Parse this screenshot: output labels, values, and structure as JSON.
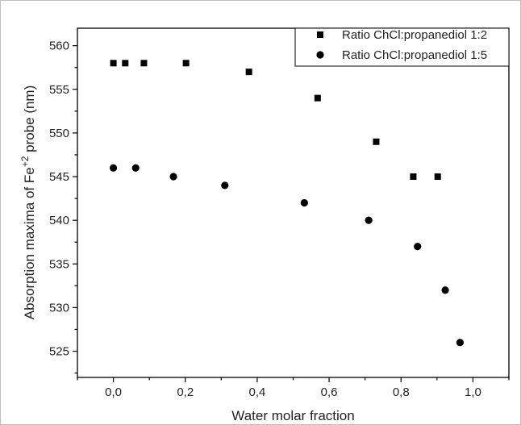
{
  "chart_data": {
    "type": "scatter",
    "xlabel": "Water molar fraction",
    "ylabel_prefix": "Absorption maxima of Fe",
    "ylabel_sup": "+2",
    "ylabel_suffix": " probe (nm)",
    "xlim": [
      -0.1,
      1.1
    ],
    "ylim": [
      522,
      562
    ],
    "xticks": [
      0.0,
      0.2,
      0.4,
      0.6,
      0.8,
      1.0
    ],
    "xtick_labels": [
      "0,0",
      "0,2",
      "0,4",
      "0,6",
      "0,8",
      "1,0"
    ],
    "yticks": [
      525,
      530,
      535,
      540,
      545,
      550,
      555,
      560
    ],
    "ytick_labels": [
      "525",
      "530",
      "535",
      "540",
      "545",
      "550",
      "555",
      "560"
    ],
    "legend_position": "top-right",
    "grid": false,
    "series": [
      {
        "name": "Ratio ChCl:propanediol 1:2",
        "marker": "square",
        "x": [
          0.0,
          0.033,
          0.085,
          0.202,
          0.377,
          0.568,
          0.731,
          0.834,
          0.902
        ],
        "y": [
          558,
          558,
          558,
          558,
          557,
          554,
          549,
          545,
          545
        ]
      },
      {
        "name": "Ratio ChCl:propanediol 1:5",
        "marker": "circle",
        "x": [
          0.0,
          0.062,
          0.167,
          0.31,
          0.531,
          0.71,
          0.846,
          0.923,
          0.964
        ],
        "y": [
          546,
          546,
          545,
          544,
          542,
          540,
          537,
          532,
          526
        ]
      }
    ]
  }
}
